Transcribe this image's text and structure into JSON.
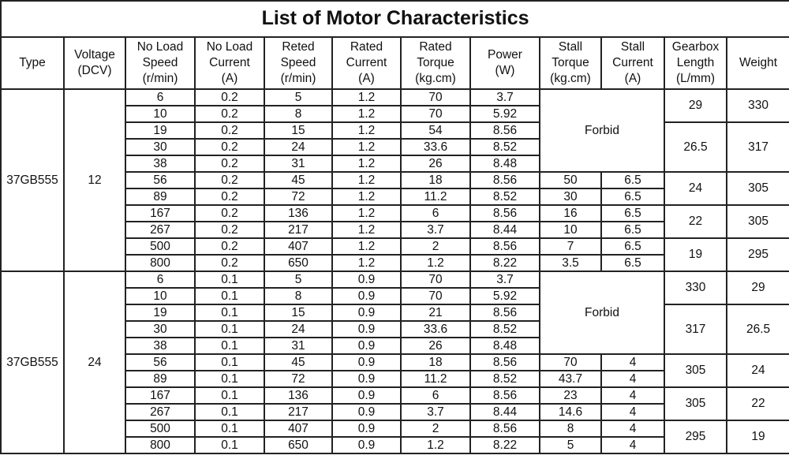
{
  "title": "List of Motor Characteristics",
  "headers": [
    [
      "Type"
    ],
    [
      "Voltage",
      "(DCV)"
    ],
    [
      "No Load",
      "Speed",
      "(r/min)"
    ],
    [
      "No Load",
      "Current",
      "(A)"
    ],
    [
      "Reted",
      "Speed",
      "(r/min)"
    ],
    [
      "Rated",
      "Current",
      "(A)"
    ],
    [
      "Rated",
      "Torque",
      "(kg.cm)"
    ],
    [
      "Power",
      "(W)"
    ],
    [
      "Stall",
      "Torque",
      "(kg.cm)"
    ],
    [
      "Stall",
      "Current",
      "(A)"
    ],
    [
      "Gearbox",
      "Length",
      "(L/mm)"
    ],
    [
      "Weight"
    ]
  ],
  "groups": [
    {
      "type": "37GB555",
      "voltage": "12",
      "rows": [
        [
          "6",
          "0.2",
          "5",
          "1.2",
          "70",
          "3.7"
        ],
        [
          "10",
          "0.2",
          "8",
          "1.2",
          "70",
          "5.92"
        ],
        [
          "19",
          "0.2",
          "15",
          "1.2",
          "54",
          "8.56"
        ],
        [
          "30",
          "0.2",
          "24",
          "1.2",
          "33.6",
          "8.52"
        ],
        [
          "38",
          "0.2",
          "31",
          "1.2",
          "26",
          "8.48"
        ],
        [
          "56",
          "0.2",
          "45",
          "1.2",
          "18",
          "8.56"
        ],
        [
          "89",
          "0.2",
          "72",
          "1.2",
          "11.2",
          "8.52"
        ],
        [
          "167",
          "0.2",
          "136",
          "1.2",
          "6",
          "8.56"
        ],
        [
          "267",
          "0.2",
          "217",
          "1.2",
          "3.7",
          "8.44"
        ],
        [
          "500",
          "0.2",
          "407",
          "1.2",
          "2",
          "8.56"
        ],
        [
          "800",
          "0.2",
          "650",
          "1.2",
          "1.2",
          "8.22"
        ]
      ],
      "forbid": "Forbid",
      "stall": [
        [
          "50",
          "6.5"
        ],
        [
          "30",
          "6.5"
        ],
        [
          "16",
          "6.5"
        ],
        [
          "10",
          "6.5"
        ],
        [
          "7",
          "6.5"
        ],
        [
          "3.5",
          "6.5"
        ]
      ],
      "gearbox": [
        {
          "span": 2,
          "length": "29",
          "weight": "330"
        },
        {
          "span": 3,
          "length": "26.5",
          "weight": "317"
        },
        {
          "span": 2,
          "length": "24",
          "weight": "305"
        },
        {
          "span": 2,
          "length": "22",
          "weight": "305"
        },
        {
          "span": 2,
          "length": "19",
          "weight": "295"
        }
      ]
    },
    {
      "type": "37GB555",
      "voltage": "24",
      "rows": [
        [
          "6",
          "0.1",
          "5",
          "0.9",
          "70",
          "3.7"
        ],
        [
          "10",
          "0.1",
          "8",
          "0.9",
          "70",
          "5.92"
        ],
        [
          "19",
          "0.1",
          "15",
          "0.9",
          "21",
          "8.56"
        ],
        [
          "30",
          "0.1",
          "24",
          "0.9",
          "33.6",
          "8.52"
        ],
        [
          "38",
          "0.1",
          "31",
          "0.9",
          "26",
          "8.48"
        ],
        [
          "56",
          "0.1",
          "45",
          "0.9",
          "18",
          "8.56"
        ],
        [
          "89",
          "0.1",
          "72",
          "0.9",
          "11.2",
          "8.52"
        ],
        [
          "167",
          "0.1",
          "136",
          "0.9",
          "6",
          "8.56"
        ],
        [
          "267",
          "0.1",
          "217",
          "0.9",
          "3.7",
          "8.44"
        ],
        [
          "500",
          "0.1",
          "407",
          "0.9",
          "2",
          "8.56"
        ],
        [
          "800",
          "0.1",
          "650",
          "0.9",
          "1.2",
          "8.22"
        ]
      ],
      "forbid": "Forbid",
      "stall": [
        [
          "70",
          "4"
        ],
        [
          "43.7",
          "4"
        ],
        [
          "23",
          "4"
        ],
        [
          "14.6",
          "4"
        ],
        [
          "8",
          "4"
        ],
        [
          "5",
          "4"
        ]
      ],
      "gearbox": [
        {
          "span": 2,
          "length": "330",
          "weight": "29"
        },
        {
          "span": 3,
          "length": "317",
          "weight": "26.5"
        },
        {
          "span": 2,
          "length": "305",
          "weight": "24"
        },
        {
          "span": 2,
          "length": "305",
          "weight": "22"
        },
        {
          "span": 2,
          "length": "295",
          "weight": "19"
        }
      ]
    }
  ]
}
